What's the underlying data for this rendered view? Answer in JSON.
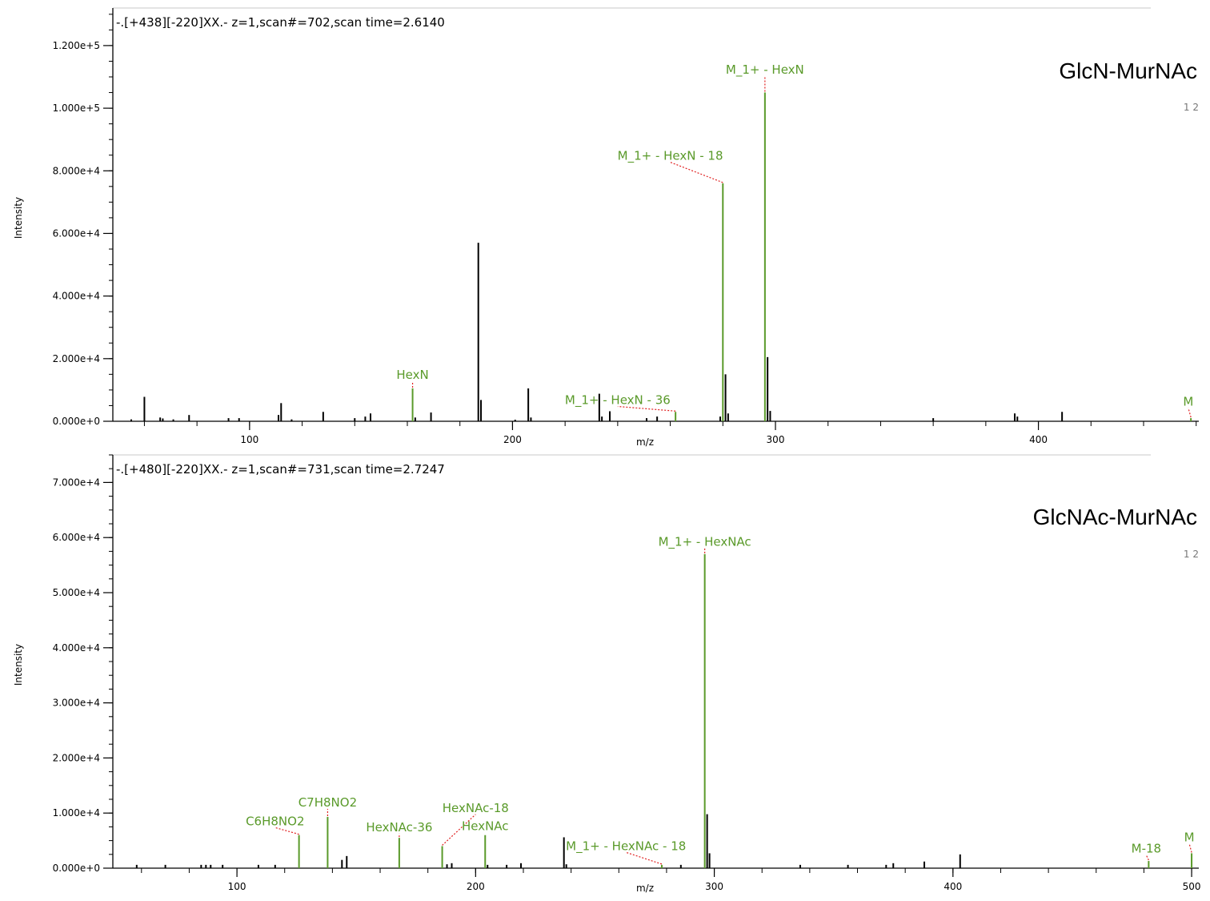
{
  "colors": {
    "annotated": "#5a9a2a",
    "peak": "#000000",
    "leader": "#e02020",
    "axis": "#000000"
  },
  "chart_data": [
    {
      "type": "bar",
      "header": "-.[+438][-220]XX.- z=1,scan#=702,scan time=2.6140",
      "sample_label": "GlcN-MurNAc",
      "charge_label": "1 2",
      "xlabel": "m/z",
      "ylabel": "Intensity",
      "xlim": [
        48,
        461
      ],
      "ylim": [
        0,
        132000
      ],
      "x_ticks": [
        100,
        200,
        300,
        400
      ],
      "y_ticks": [
        0,
        20000,
        40000,
        60000,
        80000,
        100000,
        120000
      ],
      "y_tick_labels": [
        "0.000e+0",
        "2.000e+4",
        "4.000e+4",
        "6.000e+4",
        "8.000e+4",
        "1.000e+5",
        "1.200e+5"
      ],
      "peaks": [
        [
          55,
          600
        ],
        [
          60,
          7800
        ],
        [
          66,
          1200
        ],
        [
          67,
          900
        ],
        [
          71,
          600
        ],
        [
          77,
          2000
        ],
        [
          92,
          1000
        ],
        [
          96,
          1000
        ],
        [
          111,
          2000
        ],
        [
          112,
          5800
        ],
        [
          116,
          600
        ],
        [
          128,
          3000
        ],
        [
          140,
          1000
        ],
        [
          144,
          1500
        ],
        [
          146,
          2500
        ],
        [
          163,
          1200
        ],
        [
          169,
          2800
        ],
        [
          187,
          57000
        ],
        [
          188,
          6800
        ],
        [
          201,
          500
        ],
        [
          206,
          10500
        ],
        [
          207,
          1200
        ],
        [
          233,
          8800
        ],
        [
          234,
          1500
        ],
        [
          237,
          3200
        ],
        [
          251,
          1000
        ],
        [
          255,
          1500
        ],
        [
          279,
          1500
        ],
        [
          281,
          15000
        ],
        [
          282,
          2500
        ],
        [
          297,
          20500
        ],
        [
          298,
          3300
        ],
        [
          360,
          1000
        ],
        [
          391,
          2500
        ],
        [
          392,
          1500
        ],
        [
          409,
          3000
        ]
      ],
      "annotations": [
        {
          "label": "HexN",
          "x": 162,
          "y": 10500,
          "label_x": 162,
          "label_y": 13500
        },
        {
          "label": "M_1+ - HexN - 36",
          "x": 262,
          "y": 3000,
          "label_x": 240,
          "label_y": 5500
        },
        {
          "label": "M_1+ - HexN - 18",
          "x": 280,
          "y": 76000,
          "label_x": 260,
          "label_y": 83500
        },
        {
          "label": "M_1+ - HexN",
          "x": 296,
          "y": 105000,
          "label_x": 296,
          "label_y": 111000
        },
        {
          "label": "M",
          "x": 458,
          "y": 1000,
          "label_x": 457,
          "label_y": 5000
        }
      ]
    },
    {
      "type": "bar",
      "header": "-.[+480][-220]XX.- z=1,scan#=731,scan time=2.7247",
      "sample_label": "GlcNAc-MurNAc",
      "charge_label": "1 2",
      "xlabel": "m/z",
      "ylabel": "Intensity",
      "xlim": [
        48,
        503
      ],
      "ylim": [
        0,
        75000
      ],
      "x_ticks": [
        100,
        200,
        300,
        400,
        500
      ],
      "y_ticks": [
        0,
        10000,
        20000,
        30000,
        40000,
        50000,
        60000,
        70000
      ],
      "y_tick_labels": [
        "0.000e+0",
        "1.000e+4",
        "2.000e+4",
        "3.000e+4",
        "4.000e+4",
        "5.000e+4",
        "6.000e+4",
        "7.000e+4"
      ],
      "peaks": [
        [
          58,
          600
        ],
        [
          70,
          600
        ],
        [
          85,
          600
        ],
        [
          87,
          600
        ],
        [
          89,
          600
        ],
        [
          94,
          600
        ],
        [
          109,
          600
        ],
        [
          116,
          600
        ],
        [
          144,
          1500
        ],
        [
          146,
          2200
        ],
        [
          188,
          700
        ],
        [
          190,
          900
        ],
        [
          205,
          600
        ],
        [
          213,
          600
        ],
        [
          219,
          900
        ],
        [
          237,
          5600
        ],
        [
          238,
          700
        ],
        [
          286,
          600
        ],
        [
          297,
          9800
        ],
        [
          298,
          2700
        ],
        [
          336,
          600
        ],
        [
          356,
          600
        ],
        [
          372,
          600
        ],
        [
          375,
          900
        ],
        [
          388,
          1200
        ],
        [
          403,
          2500
        ]
      ],
      "annotations": [
        {
          "label": "C6H8NO2",
          "x": 126,
          "y": 6000,
          "label_x": 116,
          "label_y": 7800
        },
        {
          "label": "C7H8NO2",
          "x": 138,
          "y": 9300,
          "label_x": 138,
          "label_y": 11200
        },
        {
          "label": "HexNAc-36",
          "x": 168,
          "y": 5500,
          "label_x": 168,
          "label_y": 6700
        },
        {
          "label": "HexNAc-18",
          "x": 186,
          "y": 4000,
          "label_x": 200,
          "label_y": 10200
        },
        {
          "label": "HexNAc",
          "x": 204,
          "y": 6000,
          "label_x": 204,
          "label_y": 6900
        },
        {
          "label": "M_1+ - HexNAc - 18",
          "x": 278,
          "y": 600,
          "label_x": 263,
          "label_y": 3300
        },
        {
          "label": "M_1+ - HexNAc",
          "x": 296,
          "y": 57000,
          "label_x": 296,
          "label_y": 58500
        },
        {
          "label": "M-18",
          "x": 482,
          "y": 1300,
          "label_x": 481,
          "label_y": 2800
        },
        {
          "label": "M",
          "x": 500,
          "y": 2700,
          "label_x": 499,
          "label_y": 4900
        }
      ]
    }
  ]
}
